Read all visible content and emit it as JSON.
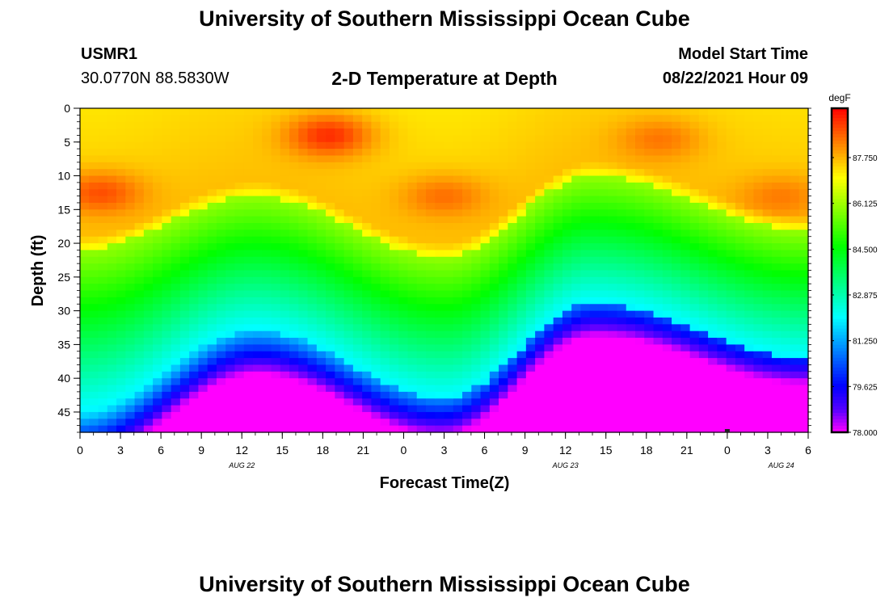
{
  "header": {
    "title": "University of Southern Mississippi Ocean Cube",
    "station_id": "USMR1",
    "station_coords": "30.0770N  88.5830W",
    "subtitle": "2-D Temperature at Depth",
    "model_start_label": "Model Start Time",
    "model_start_value": "08/22/2021 Hour 09"
  },
  "footer": {
    "title": "University of Southern Mississippi Ocean Cube"
  },
  "chart_data": {
    "type": "heatmap",
    "title": "2-D Temperature at Depth",
    "xlabel": "Forecast Time(Z)",
    "ylabel": "Depth (ft)",
    "x_tick_labels": [
      "0",
      "3",
      "6",
      "9",
      "12",
      "15",
      "18",
      "21",
      "0",
      "3",
      "6",
      "9",
      "12",
      "15",
      "18",
      "21",
      "0",
      "3",
      "6"
    ],
    "x_range_hours": [
      0,
      54
    ],
    "date_labels": [
      {
        "label": "AUG  22",
        "hour": 12
      },
      {
        "label": "AUG  23",
        "hour": 36
      },
      {
        "label": "AUG  24",
        "hour": 52
      }
    ],
    "y_tick_labels": [
      "0",
      "5",
      "10",
      "15",
      "20",
      "25",
      "30",
      "35",
      "40",
      "45"
    ],
    "y_range_ft": [
      0,
      48
    ],
    "colorbar": {
      "unit": "degF",
      "labels": [
        "87.750",
        "86.125",
        "84.500",
        "82.875",
        "81.250",
        "79.625",
        "78.000"
      ],
      "range": [
        78.0,
        89.5
      ]
    },
    "isotherm_86_depth_ft": [
      {
        "hour": 0,
        "depth": 21
      },
      {
        "hour": 13,
        "depth": 13
      },
      {
        "hour": 27,
        "depth": 22
      },
      {
        "hour": 38,
        "depth": 10
      },
      {
        "hour": 54,
        "depth": 18
      }
    ],
    "isotherm_82_depth_ft": [
      {
        "hour": 0,
        "depth": 45
      },
      {
        "hour": 13,
        "depth": 33
      },
      {
        "hour": 27,
        "depth": 43
      },
      {
        "hour": 38,
        "depth": 29
      },
      {
        "hour": 54,
        "depth": 37
      }
    ],
    "warm_spots": [
      {
        "hour": 18.5,
        "depth": 4,
        "temp": 89.3
      },
      {
        "hour": 1.5,
        "depth": 12.5,
        "temp": 88.9
      },
      {
        "hour": 27,
        "depth": 13,
        "temp": 88.6
      },
      {
        "hour": 43,
        "depth": 4.5,
        "temp": 88.5
      },
      {
        "hour": 52,
        "depth": 13,
        "temp": 88.4
      }
    ],
    "marker": {
      "hour": 48,
      "depth": 48
    }
  }
}
